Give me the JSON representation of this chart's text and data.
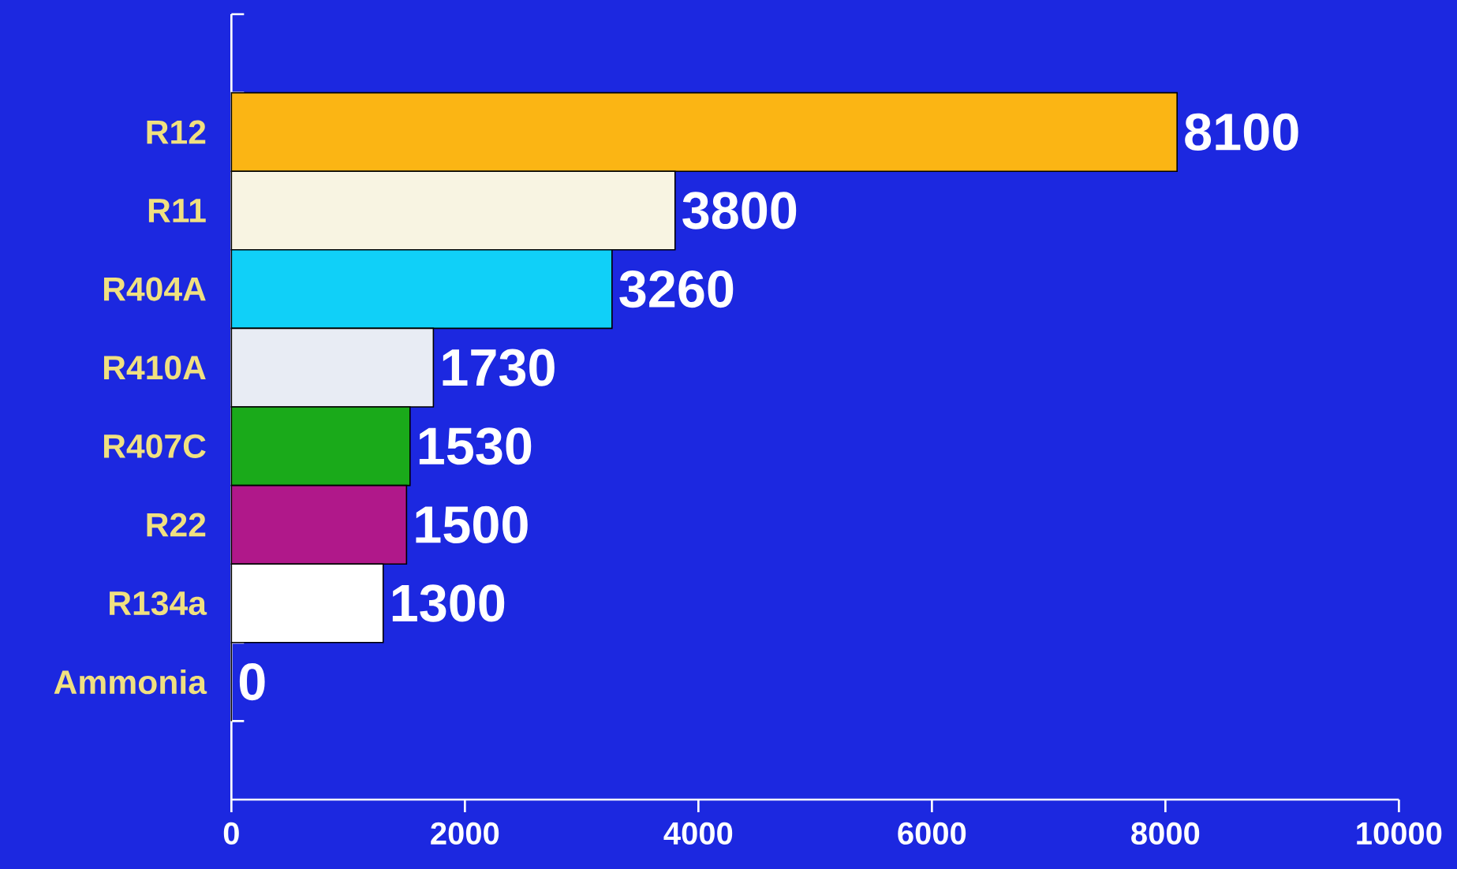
{
  "chart_data": {
    "type": "bar",
    "orientation": "horizontal",
    "categories": [
      "R12",
      "R11",
      "R404A",
      "R410A",
      "R407C",
      "R22",
      "R134a",
      "Ammonia"
    ],
    "values": [
      8100,
      3800,
      3260,
      1730,
      1530,
      1500,
      1300,
      0
    ],
    "colors": [
      "#fbb514",
      "#f8f4e2",
      "#10d0f8",
      "#e8ecf4",
      "#1aaa1a",
      "#b0188a",
      "#ffffff",
      "#ffffff"
    ],
    "xlim": [
      0,
      10000
    ],
    "xticks": [
      0,
      2000,
      4000,
      6000,
      8000,
      10000
    ],
    "value_labels": [
      "8100",
      "3800",
      "3260",
      "1730",
      "1530",
      "1500",
      "1300",
      "0"
    ]
  }
}
